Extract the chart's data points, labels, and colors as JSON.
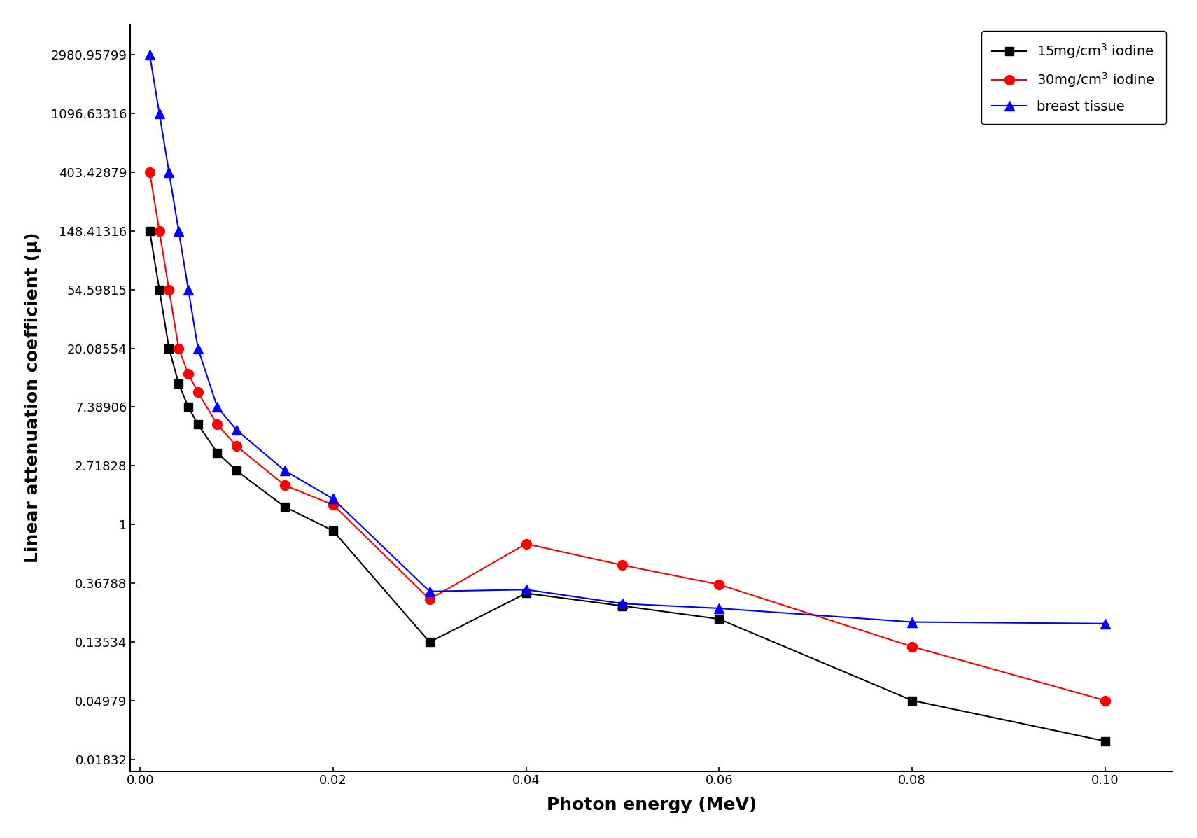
{
  "title": "",
  "xlabel": "Photon energy (MeV)",
  "ylabel": "Linear attenuation coefficient (μ)",
  "yticks": [
    2980.95799,
    1096.63316,
    403.42879,
    148.41316,
    54.59815,
    20.08554,
    7.38906,
    2.71828,
    1,
    0.36788,
    0.13534,
    0.04979,
    0.01832
  ],
  "ytick_labels": [
    "2980.95799",
    "1096.63316",
    "403.42879",
    "148.41316",
    "54.59815",
    "20.08554",
    "7.38906",
    "2.71828",
    "1",
    "0.36788",
    "0.13534",
    "0.04979",
    "0.01832"
  ],
  "xticks": [
    0.0,
    0.02,
    0.04,
    0.06,
    0.08,
    0.1
  ],
  "series": [
    {
      "label": "15mg/cm³ iodine",
      "color": "#000000",
      "marker": "s",
      "markersize": 9,
      "x": [
        0.001,
        0.002,
        0.003,
        0.004,
        0.005,
        0.006,
        0.008,
        0.01,
        0.015,
        0.02,
        0.03,
        0.04,
        0.05,
        0.06,
        0.08,
        0.1
      ],
      "y": [
        148.41,
        54.6,
        20.09,
        11.0,
        7.39,
        5.5,
        3.4,
        2.5,
        1.35,
        0.9,
        0.135,
        0.31,
        0.25,
        0.2,
        0.05,
        0.025
      ]
    },
    {
      "label": "30mg/cm³ iodine",
      "color": "#ff0000",
      "marker": "o",
      "markersize": 10,
      "x": [
        0.001,
        0.002,
        0.003,
        0.004,
        0.005,
        0.006,
        0.008,
        0.01,
        0.015,
        0.02,
        0.03,
        0.04,
        0.05,
        0.06,
        0.08,
        0.1
      ],
      "y": [
        403.43,
        148.41,
        54.6,
        20.09,
        13.0,
        9.5,
        5.5,
        3.8,
        1.95,
        1.4,
        0.28,
        0.72,
        0.5,
        0.36,
        0.125,
        0.05
      ]
    },
    {
      "label": "breast tissue",
      "color": "#0000ff",
      "marker": "^",
      "markersize": 10,
      "x": [
        0.001,
        0.002,
        0.003,
        0.004,
        0.005,
        0.006,
        0.008,
        0.01,
        0.015,
        0.02,
        0.03,
        0.04,
        0.05,
        0.06,
        0.08,
        0.1
      ],
      "y": [
        2980.96,
        1096.63,
        403.43,
        148.41,
        54.6,
        20.09,
        7.39,
        5.0,
        2.5,
        1.55,
        0.32,
        0.33,
        0.26,
        0.24,
        0.19,
        0.185
      ]
    }
  ],
  "legend_loc": "upper right",
  "figsize": [
    17.1,
    11.97
  ],
  "dpi": 100,
  "bg_color": "#ffffff",
  "xlim": [
    -0.001,
    0.107
  ],
  "ylim_log": [
    0.015,
    5000
  ]
}
